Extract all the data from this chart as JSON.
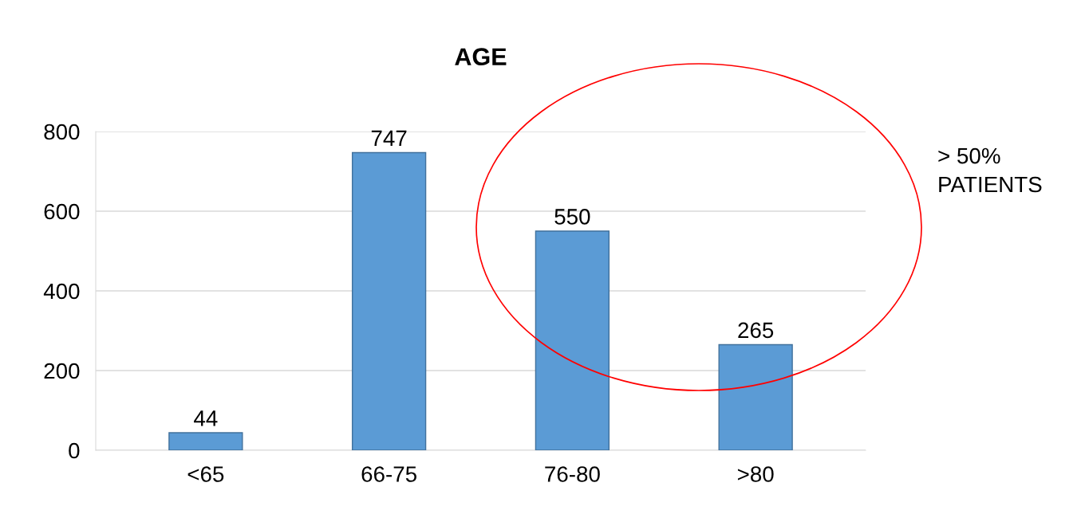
{
  "chart_data": {
    "type": "bar",
    "title": "AGE",
    "categories": [
      "<65",
      "66-75",
      "76-80",
      ">80"
    ],
    "values": [
      44,
      747,
      550,
      265
    ],
    "color": "#5b9bd5",
    "ylim": [
      0,
      800
    ],
    "yticks": [
      0,
      200,
      400,
      600,
      800
    ],
    "grid": "y",
    "data_labels": true,
    "annotations": [
      "> 50%\nPATIENTS"
    ]
  }
}
